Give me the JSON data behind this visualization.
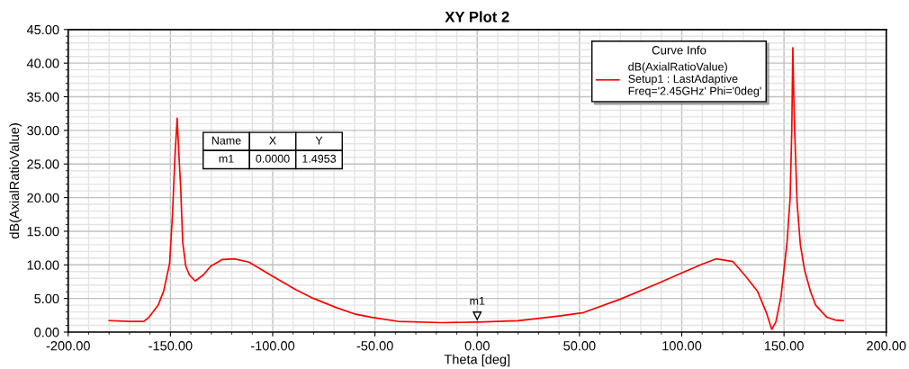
{
  "chart_data": {
    "type": "line",
    "title": "XY Plot 2",
    "xlabel": "Theta [deg]",
    "ylabel": "dB(AxialRatioValue)",
    "legend_title": "Curve Info",
    "series": [
      {
        "name": "dB(AxialRatioValue)\nSetup1 : LastAdaptive\nFreq='2.45GHz' Phi='0deg'",
        "color": "#ff0000",
        "x": [
          -180,
          -170,
          -163,
          -160.5,
          -156,
          -153.3,
          -150.4,
          -149,
          -147.8,
          -146.7,
          -145.8,
          -145,
          -144,
          -142.5,
          -140.7,
          -137.9,
          -133.9,
          -130.3,
          -124.6,
          -118.8,
          -111.6,
          -100,
          -88.6,
          -80,
          -68.5,
          -60,
          -51.5,
          -38.9,
          -17.3,
          0,
          20,
          40,
          52,
          70,
          88,
          100,
          110,
          117,
          125,
          131,
          137,
          141.5,
          144,
          146,
          148.5,
          151.5,
          153,
          153.8,
          154.3,
          155,
          156.4,
          158,
          160,
          163,
          165.5,
          171,
          175,
          179
        ],
        "values": [
          1.7,
          1.6,
          1.6,
          2.2,
          4.0,
          6.1,
          10.2,
          17.5,
          26,
          31.8,
          26,
          21.6,
          13.4,
          9.8,
          8.5,
          7.6,
          8.5,
          9.8,
          10.8,
          10.9,
          10.4,
          8.3,
          6.3,
          5.0,
          3.6,
          2.7,
          2.2,
          1.6,
          1.4,
          1.5,
          1.7,
          2.4,
          2.9,
          4.9,
          7.2,
          8.8,
          10.1,
          10.9,
          10.5,
          8.4,
          6.1,
          2.8,
          0.4,
          1.5,
          5.2,
          13.4,
          20,
          30,
          42.3,
          32,
          19.2,
          13,
          9.3,
          6,
          4,
          2.2,
          1.8,
          1.7
        ]
      }
    ],
    "xlim": [
      -200,
      200
    ],
    "xticks": [
      {
        "value": -200,
        "label": "-200.00"
      },
      {
        "value": -150,
        "label": "-150.00"
      },
      {
        "value": -100,
        "label": "-100.00"
      },
      {
        "value": -50,
        "label": "-50.00"
      },
      {
        "value": 0,
        "label": "0.00"
      },
      {
        "value": 50,
        "label": "50.00"
      },
      {
        "value": 100,
        "label": "100.00"
      },
      {
        "value": 150,
        "label": "150.00"
      },
      {
        "value": 200,
        "label": "200.00"
      }
    ],
    "ylim": [
      0,
      45
    ],
    "yticks": [
      {
        "value": 0,
        "label": "0.00"
      },
      {
        "value": 5,
        "label": "5.00"
      },
      {
        "value": 10,
        "label": "10.00"
      },
      {
        "value": 15,
        "label": "15.00"
      },
      {
        "value": 20,
        "label": "20.00"
      },
      {
        "value": 25,
        "label": "25.00"
      },
      {
        "value": 30,
        "label": "30.00"
      },
      {
        "value": 35,
        "label": "35.00"
      },
      {
        "value": 40,
        "label": "40.00"
      },
      {
        "value": 45,
        "label": "45.00"
      }
    ],
    "grid": true,
    "legend": "top right",
    "marker": "none",
    "line_style": "solid",
    "annotations": [
      {
        "text": "m1",
        "x": 0,
        "y": 1.4953
      },
      "Name",
      "X",
      "Y",
      "m1",
      "0.0000",
      "1.4953"
    ]
  }
}
